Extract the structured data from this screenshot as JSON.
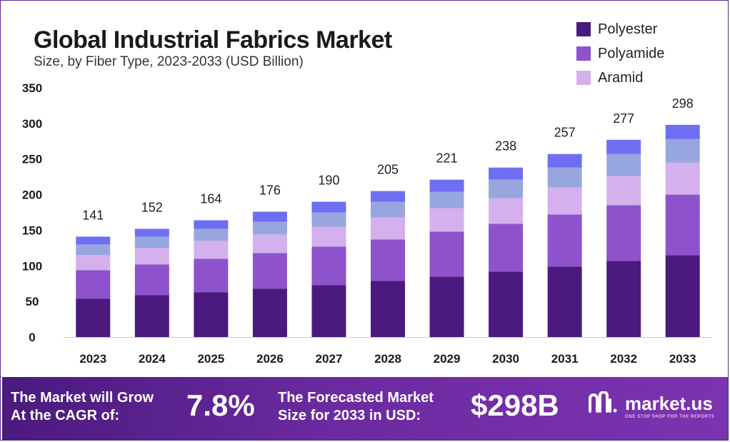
{
  "colors": {
    "Polyester": "#4a1a7e",
    "Polyamide": "#8e52cc",
    "Aramid": "#d4b0ec",
    "Segment4": "#98a6e0",
    "Segment5": "#6f6ef3",
    "axis": "#c9c9c9",
    "banner": "#5a2590"
  },
  "chart_data": {
    "type": "bar",
    "stacked": true,
    "title": "Global Industrial Fabrics Market",
    "subtitle": "Size, by Fiber Type, 2023-2033 (USD Billion)",
    "categories": [
      "2023",
      "2024",
      "2025",
      "2026",
      "2027",
      "2028",
      "2029",
      "2030",
      "2031",
      "2032",
      "2033"
    ],
    "series": [
      {
        "name": "Polyester",
        "values": [
          54,
          59,
          63,
          68,
          73,
          79,
          85,
          92,
          99,
          107,
          115
        ]
      },
      {
        "name": "Polyamide",
        "values": [
          40,
          43,
          47,
          50,
          54,
          58,
          63,
          67,
          73,
          78,
          85
        ]
      },
      {
        "name": "Aramid",
        "values": [
          21,
          23,
          25,
          26,
          28,
          31,
          33,
          36,
          38,
          41,
          45
        ]
      },
      {
        "name": "",
        "values": [
          15,
          16,
          17,
          18,
          20,
          22,
          23,
          26,
          28,
          31,
          33
        ]
      },
      {
        "name": "",
        "values": [
          11,
          11,
          12,
          14,
          15,
          15,
          17,
          17,
          19,
          20,
          20
        ]
      }
    ],
    "totals": [
      141,
      152,
      164,
      176,
      190,
      205,
      221,
      238,
      257,
      277,
      298
    ],
    "yticks": [
      "0",
      "50",
      "100",
      "150",
      "200",
      "250",
      "300",
      "350"
    ],
    "ylim": [
      0,
      350
    ],
    "legend": [
      "Polyester",
      "Polyamide",
      "Aramid"
    ],
    "legend_position": "top-right",
    "grid": false
  },
  "banner": {
    "cagr_label_1": "The Market will Grow",
    "cagr_label_2": "At the CAGR of:",
    "cagr_value": "7.8%",
    "forecast_label_1": "The Forecasted Market",
    "forecast_label_2": "Size for 2033 in USD:",
    "forecast_value": "$298B",
    "logo_name": "market.us",
    "logo_tagline": "ONE STOP SHOP FOR THE REPORTS"
  }
}
